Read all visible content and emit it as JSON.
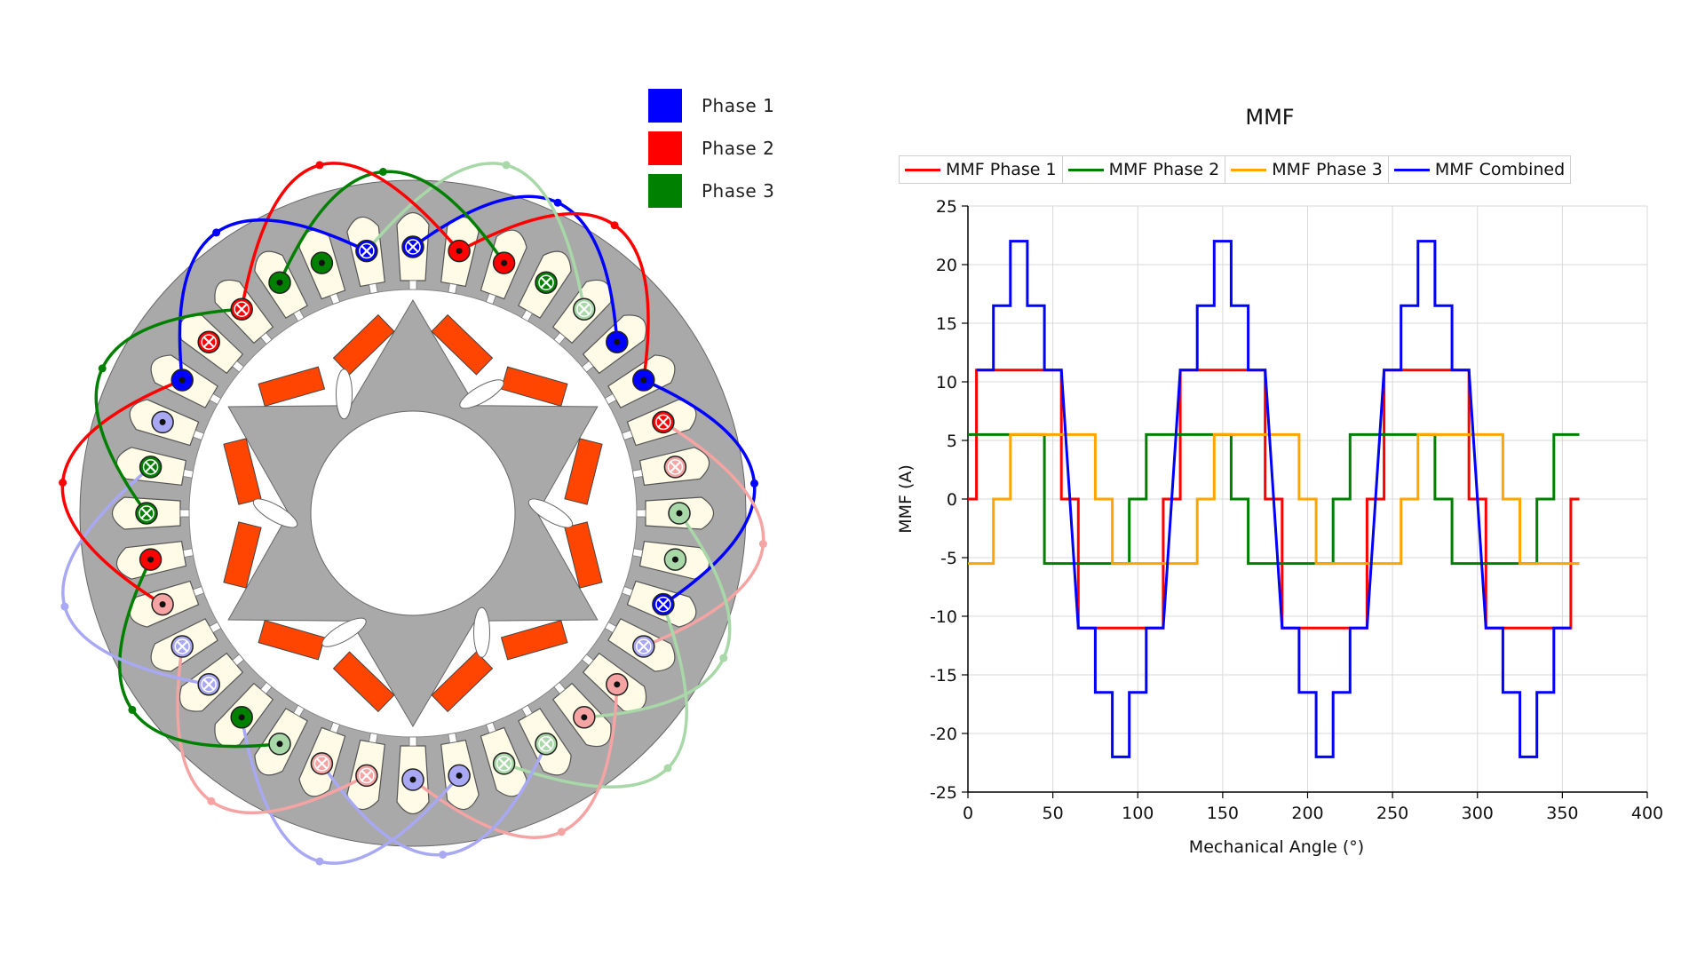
{
  "legend": {
    "items": [
      {
        "label": "Phase 1",
        "color": "#0000ff"
      },
      {
        "label": "Phase 2",
        "color": "#ff0000"
      },
      {
        "label": "Phase 3",
        "color": "#008000"
      }
    ]
  },
  "motor": {
    "slots": 36,
    "slot_windings": [
      {
        "phase": 1,
        "dir": "x",
        "pale": false
      },
      {
        "phase": 2,
        "dir": "dot",
        "pale": false
      },
      {
        "phase": 2,
        "dir": "dot",
        "pale": false
      },
      {
        "phase": 3,
        "dir": "x",
        "pale": false
      },
      {
        "phase": 3,
        "dir": "x",
        "pale": true
      },
      {
        "phase": 1,
        "dir": "dot",
        "pale": false
      },
      {
        "phase": 1,
        "dir": "dot",
        "pale": false
      },
      {
        "phase": 2,
        "dir": "x",
        "pale": false
      },
      {
        "phase": 2,
        "dir": "x",
        "pale": true
      },
      {
        "phase": 3,
        "dir": "dot",
        "pale": true
      },
      {
        "phase": 3,
        "dir": "dot",
        "pale": true
      },
      {
        "phase": 1,
        "dir": "x",
        "pale": false
      },
      {
        "phase": 1,
        "dir": "x",
        "pale": true
      },
      {
        "phase": 2,
        "dir": "dot",
        "pale": true
      },
      {
        "phase": 2,
        "dir": "dot",
        "pale": true
      },
      {
        "phase": 3,
        "dir": "x",
        "pale": true
      },
      {
        "phase": 3,
        "dir": "x",
        "pale": true
      },
      {
        "phase": 1,
        "dir": "dot",
        "pale": true
      },
      {
        "phase": 1,
        "dir": "dot",
        "pale": true
      },
      {
        "phase": 2,
        "dir": "x",
        "pale": true
      },
      {
        "phase": 2,
        "dir": "x",
        "pale": true
      },
      {
        "phase": 3,
        "dir": "dot",
        "pale": true
      },
      {
        "phase": 3,
        "dir": "dot",
        "pale": false
      },
      {
        "phase": 1,
        "dir": "x",
        "pale": true
      },
      {
        "phase": 1,
        "dir": "x",
        "pale": true
      },
      {
        "phase": 2,
        "dir": "dot",
        "pale": true
      },
      {
        "phase": 2,
        "dir": "dot",
        "pale": false
      },
      {
        "phase": 3,
        "dir": "x",
        "pale": false
      },
      {
        "phase": 3,
        "dir": "x",
        "pale": false
      },
      {
        "phase": 1,
        "dir": "dot",
        "pale": true
      },
      {
        "phase": 1,
        "dir": "dot",
        "pale": false
      },
      {
        "phase": 2,
        "dir": "x",
        "pale": false
      },
      {
        "phase": 2,
        "dir": "x",
        "pale": false
      },
      {
        "phase": 3,
        "dir": "dot",
        "pale": false
      },
      {
        "phase": 3,
        "dir": "dot",
        "pale": false
      },
      {
        "phase": 1,
        "dir": "x",
        "pale": false
      }
    ],
    "magnet_color": "#ff4500",
    "stator_color": "#a9a9a9",
    "slot_fill_color": "#fffbe6"
  },
  "chart_data": {
    "type": "line",
    "title": "MMF",
    "xlabel": "Mechanical Angle (°)",
    "ylabel": "MMF (A)",
    "xlim": [
      0,
      400
    ],
    "ylim": [
      -25,
      25
    ],
    "xticks": [
      0,
      50,
      100,
      150,
      200,
      250,
      300,
      350,
      400
    ],
    "yticks": [
      25,
      20,
      15,
      10,
      5,
      0,
      -5,
      -10,
      -15,
      -20,
      -25
    ],
    "grid": true,
    "legend_position": "top",
    "series": [
      {
        "name": "MMF Phase 1",
        "color": "#ff0000",
        "x": [
          0,
          5,
          5,
          55,
          55,
          65,
          65,
          115,
          115,
          125,
          125,
          175,
          175,
          185,
          185,
          235,
          235,
          245,
          245,
          295,
          295,
          305,
          305,
          355,
          355,
          360
        ],
        "y": [
          0,
          0,
          11,
          11,
          0,
          0,
          -11,
          -11,
          0,
          0,
          11,
          11,
          0,
          0,
          -11,
          -11,
          0,
          0,
          11,
          11,
          0,
          0,
          -11,
          -11,
          0,
          0
        ]
      },
      {
        "name": "MMF Phase 2",
        "color": "#008000",
        "x": [
          0,
          45,
          45,
          95,
          95,
          105,
          105,
          155,
          155,
          165,
          165,
          215,
          215,
          225,
          225,
          275,
          275,
          285,
          285,
          335,
          335,
          345,
          345,
          360
        ],
        "y": [
          5.5,
          5.5,
          -5.5,
          -5.5,
          0,
          0,
          5.5,
          5.5,
          0,
          0,
          -5.5,
          -5.5,
          0,
          0,
          5.5,
          5.5,
          0,
          0,
          -5.5,
          -5.5,
          0,
          0,
          5.5,
          5.5
        ]
      },
      {
        "name": "MMF Phase 3",
        "color": "#ffa500",
        "x": [
          0,
          15,
          15,
          25,
          25,
          75,
          75,
          85,
          85,
          135,
          135,
          145,
          145,
          195,
          195,
          205,
          205,
          255,
          255,
          265,
          265,
          315,
          315,
          325,
          325,
          360
        ],
        "y": [
          -5.5,
          -5.5,
          0,
          0,
          5.5,
          5.5,
          0,
          0,
          -5.5,
          -5.5,
          0,
          0,
          5.5,
          5.5,
          0,
          0,
          -5.5,
          -5.5,
          0,
          0,
          5.5,
          5.5,
          0,
          0,
          -5.5,
          -5.5
        ]
      },
      {
        "name": "MMF Combined",
        "color": "#0000ff",
        "x": [
          5,
          15,
          15,
          25,
          25,
          35,
          35,
          45,
          45,
          55,
          65,
          75,
          75,
          85,
          85,
          95,
          95,
          105,
          105,
          115,
          125,
          135,
          135,
          145,
          145,
          155,
          155,
          165,
          165,
          175,
          185,
          195,
          195,
          205,
          205,
          215,
          215,
          225,
          225,
          235,
          245,
          255,
          255,
          265,
          265,
          275,
          275,
          285,
          285,
          295,
          305,
          315,
          315,
          325,
          325,
          335,
          335,
          345,
          345,
          355
        ],
        "y": [
          11,
          11,
          16.5,
          16.5,
          22,
          22,
          16.5,
          16.5,
          11,
          11,
          -11,
          -11,
          -16.5,
          -16.5,
          -22,
          -22,
          -16.5,
          -16.5,
          -11,
          -11,
          11,
          11,
          16.5,
          16.5,
          22,
          22,
          16.5,
          16.5,
          11,
          11,
          -11,
          -11,
          -16.5,
          -16.5,
          -22,
          -22,
          -16.5,
          -16.5,
          -11,
          -11,
          11,
          11,
          16.5,
          16.5,
          22,
          22,
          16.5,
          16.5,
          11,
          11,
          -11,
          -11,
          -16.5,
          -16.5,
          -22,
          -22,
          -16.5,
          -16.5,
          -11,
          -11
        ]
      }
    ]
  }
}
